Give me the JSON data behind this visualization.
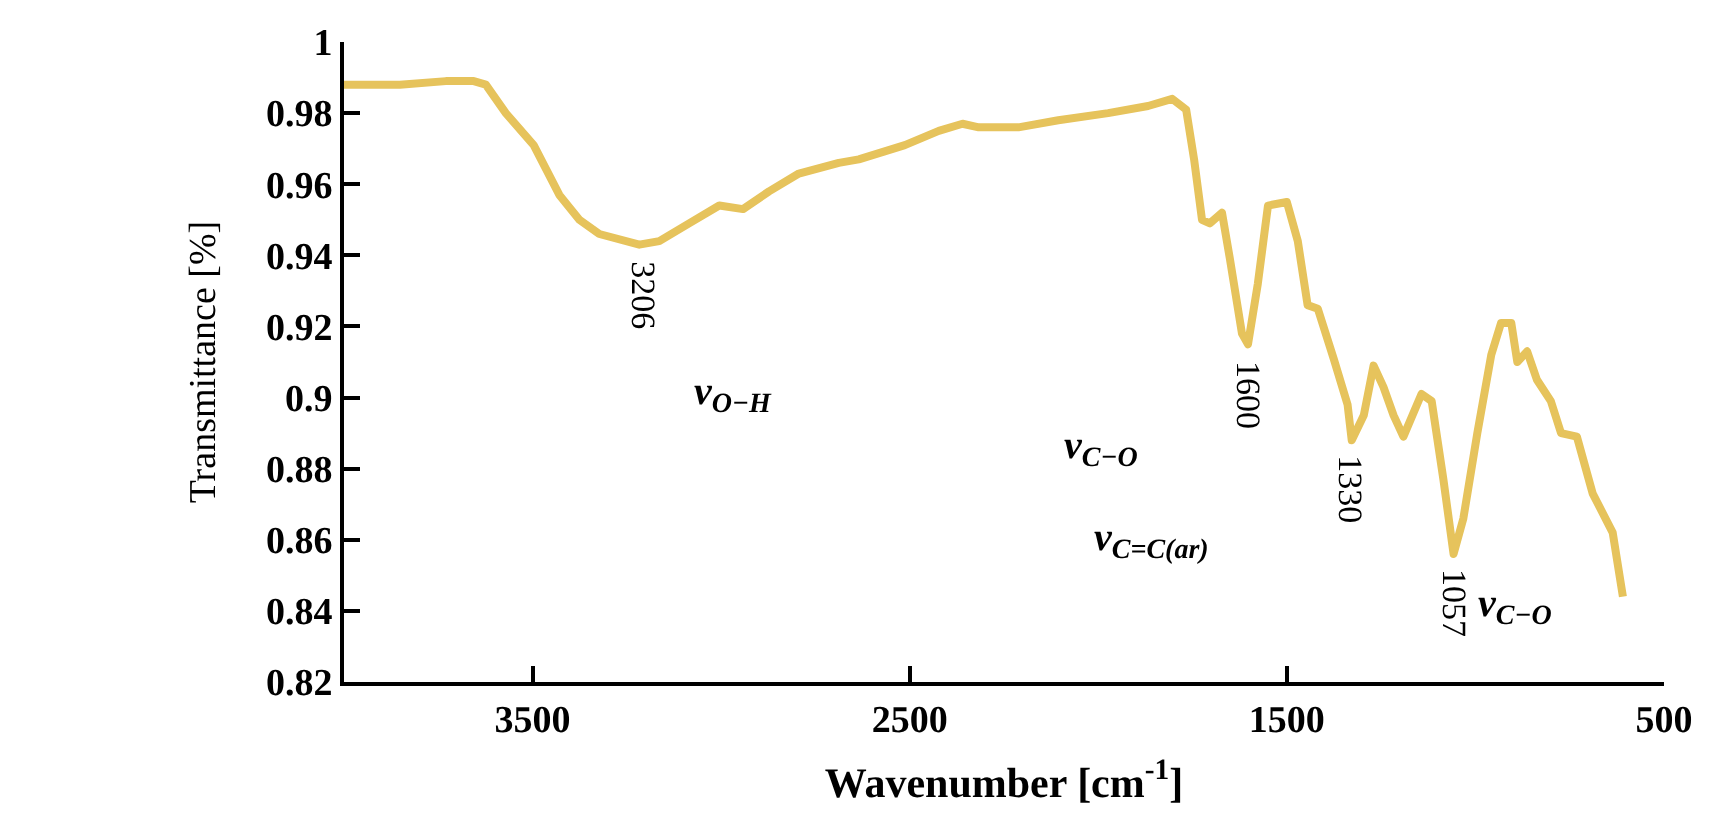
{
  "chart_data": {
    "type": "line",
    "xlabel": "Wavenumber [cm$^{-1}$]",
    "ylabel": "Transmittance [%]",
    "x": [
      4000,
      3852,
      3730,
      3656,
      3624,
      3571,
      3497,
      3429,
      3376,
      3323,
      3217,
      3164,
      3085,
      3005,
      2942,
      2873,
      2794,
      2688,
      2635,
      2513,
      2423,
      2360,
      2317,
      2212,
      2106,
      1974,
      1868,
      1804,
      1767,
      1746,
      1725,
      1704,
      1672,
      1651,
      1619,
      1603,
      1577,
      1550,
      1500,
      1471,
      1445,
      1418,
      1376,
      1339,
      1328,
      1296,
      1270,
      1244,
      1217,
      1191,
      1143,
      1116,
      1085,
      1058,
      1032,
      995,
      958,
      932,
      905,
      889,
      863,
      837,
      800,
      773,
      731,
      689,
      636,
      609
    ],
    "series": [
      {
        "color": "#e6c35c",
        "values": [
          0.988,
          0.988,
          0.989,
          0.989,
          0.988,
          0.98,
          0.971,
          0.957,
          0.95,
          0.946,
          0.943,
          0.944,
          0.949,
          0.954,
          0.953,
          0.958,
          0.963,
          0.966,
          0.967,
          0.971,
          0.975,
          0.977,
          0.976,
          0.976,
          0.978,
          0.98,
          0.982,
          0.984,
          0.981,
          0.967,
          0.95,
          0.949,
          0.952,
          0.939,
          0.918,
          0.915,
          0.932,
          0.954,
          0.955,
          0.944,
          0.926,
          0.925,
          0.911,
          0.898,
          0.888,
          0.895,
          0.909,
          0.903,
          0.895,
          0.889,
          0.901,
          0.899,
          0.877,
          0.856,
          0.866,
          0.89,
          0.912,
          0.921,
          0.921,
          0.91,
          0.913,
          0.905,
          0.899,
          0.89,
          0.889,
          0.873,
          0.862,
          0.844
        ]
      }
    ],
    "xlim": [
      4000,
      500
    ],
    "xticks": [
      3500,
      2500,
      1500,
      500
    ],
    "ylim": [
      0.82,
      1
    ],
    "yticks": [
      0.82,
      0.84,
      0.86,
      0.88,
      0.9,
      0.92,
      0.94,
      0.96,
      0.98,
      1
    ],
    "grid": false,
    "marker": "none",
    "line_style": "solid",
    "annotations": [
      {
        "text": "3206",
        "x": 3206,
        "y": 0.943
      },
      "ν$_{O−H}$",
      {
        "text": "1600",
        "x": 1600,
        "y": 0.915
      },
      "ν$_{C−O}$",
      {
        "text": "1330",
        "x": 1330,
        "y": 0.888
      },
      "ν$_{C=C(ar)}$",
      {
        "text": "1057",
        "x": 1057,
        "y": 0.856
      },
      "ν$_{C−O}$"
    ]
  }
}
